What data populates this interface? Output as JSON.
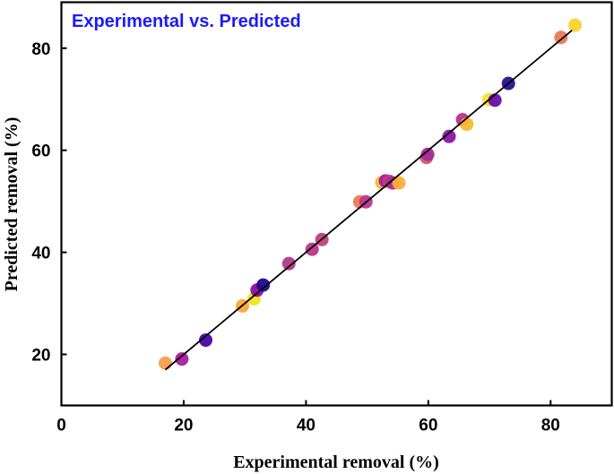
{
  "chart_data": {
    "type": "scatter",
    "title": "Experimental vs. Predicted",
    "xlabel": "Experimental removal (%)",
    "ylabel": "Predicted removal (%)",
    "xlim": [
      0,
      90
    ],
    "ylim": [
      10,
      89
    ],
    "xticks": [
      0,
      20,
      40,
      60,
      80
    ],
    "yticks": [
      20,
      40,
      60,
      80
    ],
    "grid": false,
    "fit_line": {
      "x": [
        17,
        83.5
      ],
      "y": [
        17,
        83.5
      ]
    },
    "points": [
      {
        "x": 17.0,
        "y": 18.3,
        "color": "#f79d4f"
      },
      {
        "x": 19.7,
        "y": 19.1,
        "color": "#a81c9f"
      },
      {
        "x": 23.6,
        "y": 22.8,
        "color": "#4b05a1"
      },
      {
        "x": 29.6,
        "y": 29.5,
        "color": "#fca636"
      },
      {
        "x": 31.5,
        "y": 30.9,
        "color": "#f2e31a"
      },
      {
        "x": 32.0,
        "y": 32.6,
        "color": "#8a0ca6"
      },
      {
        "x": 33.0,
        "y": 33.6,
        "color": "#1f0b8c"
      },
      {
        "x": 37.2,
        "y": 37.8,
        "color": "#b4388a"
      },
      {
        "x": 41.0,
        "y": 40.6,
        "color": "#b93688"
      },
      {
        "x": 42.6,
        "y": 42.5,
        "color": "#c23f7e"
      },
      {
        "x": 48.8,
        "y": 49.9,
        "color": "#ef7955"
      },
      {
        "x": 49.8,
        "y": 49.9,
        "color": "#b8378c"
      },
      {
        "x": 52.4,
        "y": 53.7,
        "color": "#fbb535"
      },
      {
        "x": 53.0,
        "y": 54.0,
        "color": "#9c1ca4"
      },
      {
        "x": 53.6,
        "y": 53.9,
        "color": "#c13a86"
      },
      {
        "x": 54.2,
        "y": 53.6,
        "color": "#a72e8e"
      },
      {
        "x": 55.2,
        "y": 53.6,
        "color": "#fcb038"
      },
      {
        "x": 59.7,
        "y": 58.6,
        "color": "#d6546c"
      },
      {
        "x": 59.9,
        "y": 59.2,
        "color": "#a62b9a"
      },
      {
        "x": 63.4,
        "y": 62.7,
        "color": "#8a16a6"
      },
      {
        "x": 65.6,
        "y": 66.0,
        "color": "#b8318f"
      },
      {
        "x": 66.3,
        "y": 65.1,
        "color": "#fbb92e"
      },
      {
        "x": 69.9,
        "y": 69.9,
        "color": "#f2e12a"
      },
      {
        "x": 70.9,
        "y": 69.8,
        "color": "#6a0ea8"
      },
      {
        "x": 73.1,
        "y": 73.1,
        "color": "#271191"
      },
      {
        "x": 81.7,
        "y": 82.1,
        "color": "#ef7757"
      },
      {
        "x": 84.0,
        "y": 84.5,
        "color": "#f9d22c"
      }
    ]
  }
}
